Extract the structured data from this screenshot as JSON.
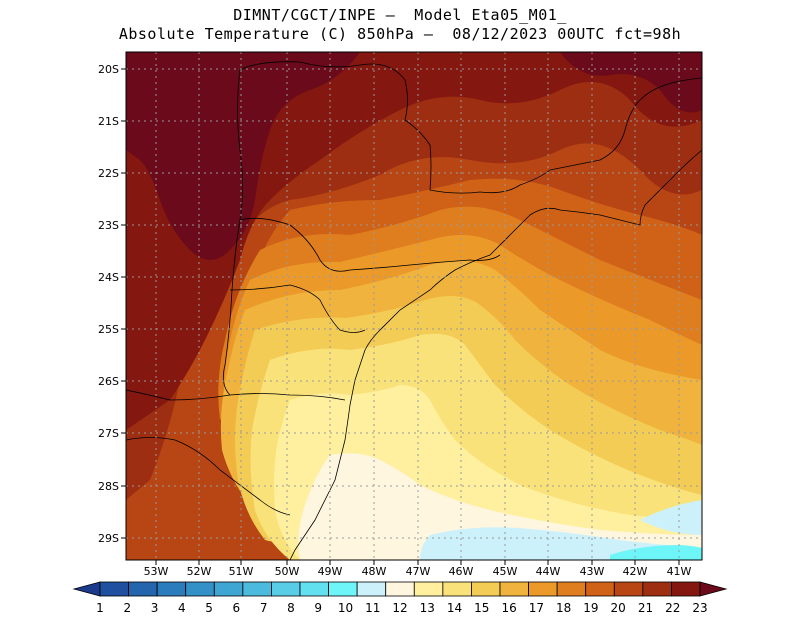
{
  "title_line1": "DIMNT/CGCT/INPE –  Model Eta05_M01_",
  "title_line2": "Absolute Temperature (C) 850hPa –  08/12/2023 00UTC fct=98h",
  "lat_labels": [
    "20S",
    "21S",
    "22S",
    "23S",
    "24S",
    "25S",
    "26S",
    "27S",
    "28S",
    "29S"
  ],
  "lon_labels": [
    "53W",
    "52W",
    "51W",
    "50W",
    "49W",
    "48W",
    "47W",
    "46W",
    "45W",
    "44W",
    "43W",
    "42W",
    "41W"
  ],
  "colorbar": {
    "labels": [
      "1",
      "2",
      "3",
      "4",
      "5",
      "6",
      "7",
      "8",
      "9",
      "10",
      "11",
      "12",
      "13",
      "14",
      "15",
      "16",
      "17",
      "18",
      "19",
      "20",
      "21",
      "22",
      "23"
    ],
    "colors": [
      "#1c3a8c",
      "#1f4f9e",
      "#2466ae",
      "#2b7cbd",
      "#3491c8",
      "#3fa6d3",
      "#4cbadc",
      "#59cde6",
      "#63e0ef",
      "#6ef5f8",
      "#cdf1fb",
      "#fff6e0",
      "#fff0a0",
      "#fae27a",
      "#f3cc55",
      "#f0b43e",
      "#eb9a2a",
      "#df7e1e",
      "#cf6217",
      "#b84614",
      "#9e2e12",
      "#84170f",
      "#6a0a1a"
    ]
  },
  "map_colors": {
    "t23": "#6a0a1a",
    "t22": "#84170f",
    "t21": "#9e2e12",
    "t20": "#b84614",
    "t19": "#cf6217",
    "t18": "#df7e1e",
    "t17": "#eb9a2a",
    "t16": "#f0b43e",
    "t15": "#f3cc55",
    "t14": "#fae27a",
    "t13": "#fff0a0",
    "t12": "#fff6e0",
    "t11": "#cdf1fb",
    "t10": "#6ef5f8"
  }
}
